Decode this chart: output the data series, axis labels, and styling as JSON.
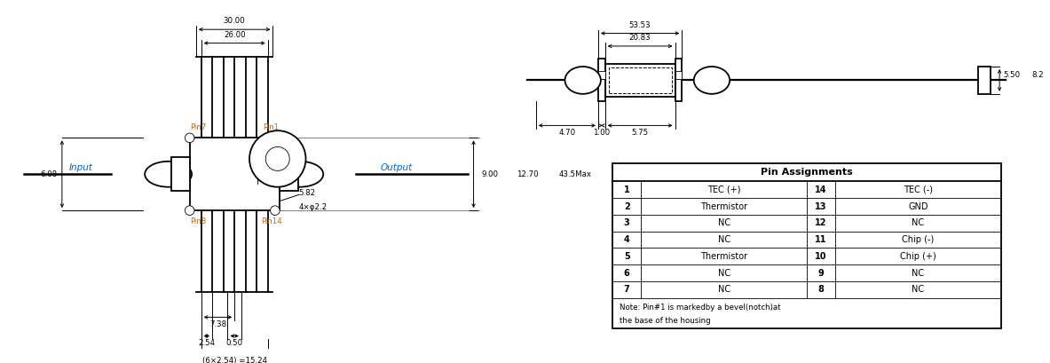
{
  "bg_color": "#ffffff",
  "line_color": "#000000",
  "dim_color": "#000000",
  "pin_color": "#cc6600",
  "io_color": "#0066cc",
  "fig_width": 11.83,
  "fig_height": 4.09,
  "left": {
    "input_label": "Input",
    "output_label": "Output",
    "pin7": "Pin7",
    "pin1": "Pin1",
    "pin8": "Pin8",
    "pin14": "Pin14",
    "dim_30": "30.00",
    "dim_26": "26.00",
    "dim_9": "9.00",
    "dim_1270": "12.70",
    "dim_435": "43.5Max",
    "dim_582": "5.82",
    "dim_4x22": "4×φ2.2",
    "dim_608": "6.08",
    "dim_738": "7.38",
    "dim_254": "2.54",
    "dim_050": "0.50",
    "dim_1524": "(6×2.54) =15.24"
  },
  "right": {
    "dim_5353": "53.53",
    "dim_2083": "20.83",
    "dim_550": "5.50",
    "dim_82": "8.2",
    "dim_470": "4.70",
    "dim_100": "1.00",
    "dim_575": "5.75"
  },
  "table": {
    "title": "Pin Assignments",
    "rows": [
      [
        "1",
        "TEC (+)",
        "14",
        "TEC (-)"
      ],
      [
        "2",
        "Thermistor",
        "13",
        "GND"
      ],
      [
        "3",
        "NC",
        "12",
        "NC"
      ],
      [
        "4",
        "NC",
        "11",
        "Chip (-)"
      ],
      [
        "5",
        "Thermistor",
        "10",
        "Chip (+)"
      ],
      [
        "6",
        "NC",
        "9",
        "NC"
      ],
      [
        "7",
        "NC",
        "8",
        "NC"
      ]
    ],
    "note1": "Note: Pin#1 is markedby a bevel(notch)at",
    "note2": "the base of the housing"
  }
}
